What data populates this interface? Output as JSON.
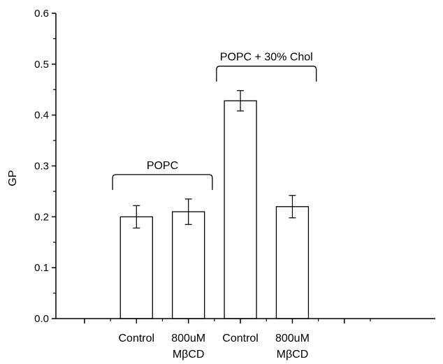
{
  "chart_data": {
    "type": "bar",
    "ylabel": "GP",
    "xlabel": "",
    "ylim": [
      0,
      0.6
    ],
    "yticks": [
      "0.0",
      "0.1",
      "0.2",
      "0.3",
      "0.4",
      "0.5",
      "0.6"
    ],
    "categories": [
      {
        "line1": "Control",
        "line2": ""
      },
      {
        "line1": "800uM",
        "line2": "MβCD"
      },
      {
        "line1": "Control",
        "line2": ""
      },
      {
        "line1": "800uM",
        "line2": "MβCD"
      }
    ],
    "values": [
      0.2,
      0.21,
      0.428,
      0.22
    ],
    "errors": [
      0.022,
      0.025,
      0.02,
      0.022
    ],
    "groups": [
      {
        "label": "POPC",
        "categories": [
          0,
          1
        ]
      },
      {
        "label": "POPC + 30% Chol",
        "categories": [
          2,
          3
        ]
      }
    ],
    "colors": {
      "bar_fill": "#ffffff",
      "bar_stroke": "#000000"
    }
  }
}
